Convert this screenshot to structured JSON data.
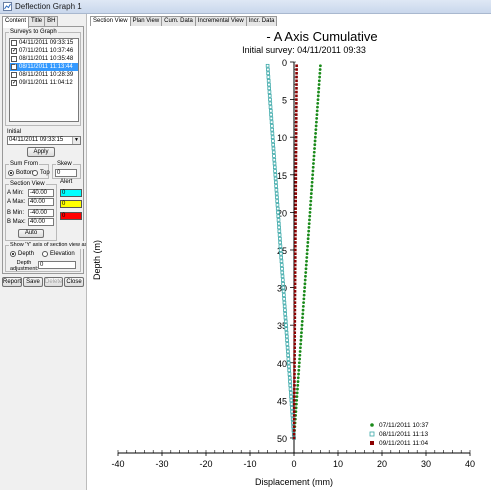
{
  "window": {
    "title": "Deflection Graph 1"
  },
  "left_tabs": [
    "Content",
    "Title",
    "BH"
  ],
  "surveys_group_label": "Surveys to Graph",
  "surveys": [
    {
      "label": "04/11/2011 09:33:15",
      "checked": false,
      "selected": false
    },
    {
      "label": "07/11/2011 10:37:46",
      "checked": true,
      "selected": false
    },
    {
      "label": "08/11/2011 10:35:48",
      "checked": false,
      "selected": false
    },
    {
      "label": "08/11/2011 11:13:44",
      "checked": true,
      "selected": true
    },
    {
      "label": "08/11/2011 10:28:39",
      "checked": false,
      "selected": false
    },
    {
      "label": "09/11/2011 11:04:12",
      "checked": true,
      "selected": false
    }
  ],
  "initial": {
    "label": "Initial",
    "value": "04/11/2011 09:33:15",
    "apply_label": "Apply"
  },
  "sum_from": {
    "label": "Sum From",
    "options": [
      "Bottom",
      "Top"
    ],
    "selected": "Bottom"
  },
  "skew": {
    "label": "Skew",
    "value": "0"
  },
  "section_view": {
    "label": "Section View",
    "a_min_label": "A Min:",
    "a_min": "-40.00",
    "a_max_label": "A Max:",
    "a_max": "40.00",
    "b_min_label": "B Min:",
    "b_min": "-40.00",
    "b_max_label": "B Max:",
    "b_max": "40.00",
    "auto_label": "Auto"
  },
  "alert": {
    "label": "Alert",
    "levels": [
      {
        "value": "0",
        "color": "#00ffff"
      },
      {
        "value": "0",
        "color": "#ffff00"
      },
      {
        "value": "0",
        "color": "#ff0000"
      }
    ]
  },
  "axis_option": {
    "label": "Show 'Y' axis of section view as:",
    "options": [
      "Depth",
      "Elevation"
    ],
    "selected": "Depth",
    "depth_adjust_label": "Depth adjustment:",
    "depth_adjust_value": "0"
  },
  "bottom_buttons": [
    {
      "label": "Report",
      "enabled": true
    },
    {
      "label": "Save",
      "enabled": true
    },
    {
      "label": "Delete",
      "enabled": false
    },
    {
      "label": "Close",
      "enabled": true
    }
  ],
  "view_tabs": [
    "Section View",
    "Plan View",
    "Cum. Data",
    "Incremental View",
    "Incr. Data"
  ],
  "active_view_tab": "Section View",
  "chart_data": {
    "type": "scatter",
    "title": "- A Axis Cumulative",
    "subtitle": "Initial survey: 04/11/2011 09:33",
    "xlabel": "Displacement (mm)",
    "ylabel": "Depth (m)",
    "xlim": [
      -40,
      40
    ],
    "ylim": [
      0,
      52
    ],
    "y_inverted": true,
    "xticks": [
      -40,
      -30,
      -20,
      -10,
      0,
      10,
      20,
      30,
      40
    ],
    "yticks": [
      0,
      5,
      10,
      15,
      20,
      25,
      30,
      35,
      40,
      45,
      50
    ],
    "grid": false,
    "legend_position": "bottom-right",
    "series": [
      {
        "name": "07/11/2011 10:37",
        "color": "#1a8a1a",
        "marker": "dot",
        "depth_start": 0.5,
        "depth_end": 50,
        "depth_step": 0.5,
        "x_top": 6.0,
        "x_bottom": 0.0
      },
      {
        "name": "08/11/2011 11:13",
        "color": "#3aa8a8",
        "marker": "open-square",
        "depth_start": 0.5,
        "depth_end": 50,
        "depth_step": 0.5,
        "x_top": -6.0,
        "x_bottom": 0.0
      },
      {
        "name": "09/11/2011 11:04",
        "color": "#8b0000",
        "marker": "square",
        "depth_start": 0.5,
        "depth_end": 50,
        "depth_step": 0.5,
        "x_top": 0.6,
        "x_bottom": 0.0
      }
    ]
  }
}
